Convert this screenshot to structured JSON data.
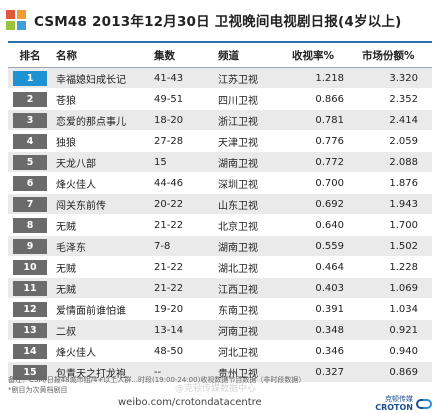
{
  "header": {
    "title": "CSM48  2013年12月30日  卫视晚间电视剧日报(4岁以上)"
  },
  "table": {
    "columns": [
      "排名",
      "名称",
      "集数",
      "频道",
      "收视率%",
      "市场份额%"
    ],
    "rows": [
      {
        "rank": "1",
        "name": "幸福媳妇成长记",
        "episodes": "41-43",
        "channel": "江苏卫视",
        "rating": "1.218",
        "share": "3.320"
      },
      {
        "rank": "2",
        "name": "苍狼",
        "episodes": "49-51",
        "channel": "四川卫视",
        "rating": "0.866",
        "share": "2.352"
      },
      {
        "rank": "3",
        "name": "恋爱的那点事儿",
        "episodes": "18-20",
        "channel": "浙江卫视",
        "rating": "0.781",
        "share": "2.414"
      },
      {
        "rank": "4",
        "name": "独狼",
        "episodes": "27-28",
        "channel": "天津卫视",
        "rating": "0.776",
        "share": "2.059"
      },
      {
        "rank": "5",
        "name": "天龙八部",
        "episodes": "15",
        "channel": "湖南卫视",
        "rating": "0.772",
        "share": "2.088"
      },
      {
        "rank": "6",
        "name": "烽火佳人",
        "episodes": "44-46",
        "channel": "深圳卫视",
        "rating": "0.700",
        "share": "1.876"
      },
      {
        "rank": "7",
        "name": "闯关东前传",
        "episodes": "20-22",
        "channel": "山东卫视",
        "rating": "0.692",
        "share": "1.943"
      },
      {
        "rank": "8",
        "name": "无贼",
        "episodes": "21-22",
        "channel": "北京卫视",
        "rating": "0.640",
        "share": "1.700"
      },
      {
        "rank": "9",
        "name": "毛泽东",
        "episodes": "7-8",
        "channel": "湖南卫视",
        "rating": "0.559",
        "share": "1.502"
      },
      {
        "rank": "10",
        "name": "无贼",
        "episodes": "21-22",
        "channel": "湖北卫视",
        "rating": "0.464",
        "share": "1.228"
      },
      {
        "rank": "11",
        "name": "无贼",
        "episodes": "21-22",
        "channel": "江西卫视",
        "rating": "0.403",
        "share": "1.069"
      },
      {
        "rank": "12",
        "name": "爱情面前谁怕谁",
        "episodes": "19-20",
        "channel": "东南卫视",
        "rating": "0.391",
        "share": "1.034"
      },
      {
        "rank": "13",
        "name": "二叔",
        "episodes": "13-14",
        "channel": "河南卫视",
        "rating": "0.348",
        "share": "0.921"
      },
      {
        "rank": "14",
        "name": "烽火佳人",
        "episodes": "48-50",
        "channel": "河北卫视",
        "rating": "0.346",
        "share": "0.940"
      },
      {
        "rank": "15",
        "name": "包青天之打龙袍",
        "episodes": "--",
        "channel": "贵州卫视",
        "rating": "0.327",
        "share": "0.869"
      }
    ]
  },
  "footnote": {
    "line1": "备注：CSM/日报48城市组/4+以上人群...时段(19:00-24:00)收视数据节目数据（非时段数据）",
    "line2": "*剧目为次黄档剧目"
  },
  "footer": {
    "url": "weibo.com/crotondatacentre",
    "watermark": "@克顿传媒数据中心",
    "brand_cn": "克顿传媒",
    "brand_en": "CROTON"
  },
  "colors": {
    "accent_blue": "#1f93d1",
    "header_rule": "#2d6fa8",
    "row_stripe": "#eaeaea",
    "badge_gray": "#6b6b6b"
  }
}
